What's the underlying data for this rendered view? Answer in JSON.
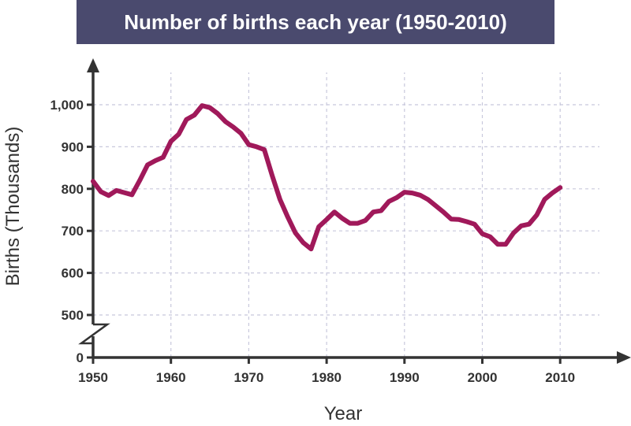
{
  "chart_data": {
    "type": "line",
    "title": "Number of births each year (1950-2010)",
    "xlabel": "Year",
    "ylabel": "Births (Thousands)",
    "x_ticks": [
      1950,
      1960,
      1970,
      1980,
      1990,
      2000,
      2010
    ],
    "x_tick_labels": [
      "1950",
      "1960",
      "1970",
      "1980",
      "1990",
      "2000",
      "2010"
    ],
    "y_ticks": [
      0,
      500,
      600,
      700,
      800,
      900,
      1000
    ],
    "y_tick_labels": [
      "0",
      "500",
      "600",
      "700",
      "800",
      "900",
      "1,000"
    ],
    "xlim": [
      1950,
      2018
    ],
    "ylim": [
      0,
      1060
    ],
    "y_axis_break": [
      0,
      500
    ],
    "grid": true,
    "colors": {
      "line": "#a0195a",
      "axis": "#333333",
      "grid": "#c8c8dc",
      "title_bg": "#4a4a6e"
    },
    "series": [
      {
        "values": [
          [
            1950,
            818
          ],
          [
            1951,
            793
          ],
          [
            1952,
            784
          ],
          [
            1953,
            796
          ],
          [
            1954,
            791
          ],
          [
            1955,
            786
          ],
          [
            1956,
            820
          ],
          [
            1957,
            857
          ],
          [
            1958,
            867
          ],
          [
            1959,
            875
          ],
          [
            1960,
            913
          ],
          [
            1961,
            930
          ],
          [
            1962,
            965
          ],
          [
            1963,
            975
          ],
          [
            1964,
            998
          ],
          [
            1965,
            993
          ],
          [
            1966,
            979
          ],
          [
            1967,
            960
          ],
          [
            1968,
            947
          ],
          [
            1969,
            932
          ],
          [
            1970,
            905
          ],
          [
            1971,
            900
          ],
          [
            1972,
            893
          ],
          [
            1973,
            832
          ],
          [
            1974,
            775
          ],
          [
            1975,
            733
          ],
          [
            1976,
            695
          ],
          [
            1977,
            672
          ],
          [
            1978,
            657
          ],
          [
            1979,
            710
          ],
          [
            1980,
            727
          ],
          [
            1981,
            745
          ],
          [
            1982,
            730
          ],
          [
            1983,
            718
          ],
          [
            1984,
            718
          ],
          [
            1985,
            725
          ],
          [
            1986,
            745
          ],
          [
            1987,
            748
          ],
          [
            1988,
            770
          ],
          [
            1989,
            779
          ],
          [
            1990,
            792
          ],
          [
            1991,
            790
          ],
          [
            1992,
            785
          ],
          [
            1993,
            775
          ],
          [
            1994,
            760
          ],
          [
            1995,
            745
          ],
          [
            1996,
            728
          ],
          [
            1997,
            727
          ],
          [
            1998,
            722
          ],
          [
            1999,
            716
          ],
          [
            2000,
            693
          ],
          [
            2001,
            686
          ],
          [
            2002,
            668
          ],
          [
            2003,
            668
          ],
          [
            2004,
            695
          ],
          [
            2005,
            712
          ],
          [
            2006,
            716
          ],
          [
            2007,
            738
          ],
          [
            2008,
            775
          ],
          [
            2009,
            790
          ],
          [
            2010,
            803
          ]
        ]
      }
    ]
  }
}
